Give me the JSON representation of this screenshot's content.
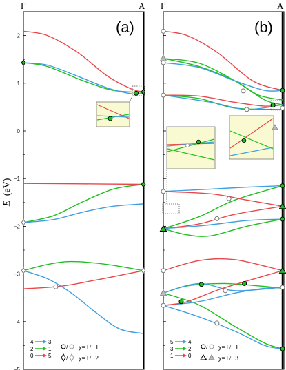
{
  "chart_data": [
    {
      "panel": "(a)",
      "type": "line",
      "xlabels": [
        "Γ",
        "A"
      ],
      "ylabel": "E (eV)",
      "ylim": [
        -5,
        2.5
      ],
      "yticks": [
        "2",
        "1",
        "0",
        "−1",
        "−2",
        "−3",
        "−4",
        "−5"
      ],
      "series": [
        {
          "color": "#e8474a",
          "points": [
            [
              0,
              2.09
            ],
            [
              0.2,
              2.0
            ],
            [
              0.45,
              1.65
            ],
            [
              0.7,
              1.15
            ],
            [
              0.9,
              0.88
            ],
            [
              1,
              0.82
            ]
          ]
        },
        {
          "color": "#1fbf1f",
          "points": [
            [
              0,
              1.43
            ],
            [
              0.2,
              1.35
            ],
            [
              0.5,
              1.05
            ],
            [
              0.75,
              0.85
            ],
            [
              1,
              0.81
            ]
          ]
        },
        {
          "color": "#3e9fe0",
          "points": [
            [
              0,
              1.43
            ],
            [
              0.2,
              1.38
            ],
            [
              0.45,
              1.15
            ],
            [
              0.7,
              0.9
            ],
            [
              0.9,
              0.78
            ],
            [
              1,
              0.79
            ]
          ]
        },
        {
          "color": "#e8474a",
          "points": [
            [
              0,
              -1.1
            ],
            [
              0.5,
              -1.11
            ],
            [
              1,
              -1.12
            ]
          ]
        },
        {
          "color": "#1fbf1f",
          "points": [
            [
              0,
              -1.92
            ],
            [
              0.25,
              -1.78
            ],
            [
              0.5,
              -1.48
            ],
            [
              0.75,
              -1.22
            ],
            [
              1,
              -1.12
            ]
          ]
        },
        {
          "color": "#3e9fe0",
          "points": [
            [
              0,
              -1.92
            ],
            [
              0.25,
              -1.86
            ],
            [
              0.5,
              -1.7
            ],
            [
              0.75,
              -1.58
            ],
            [
              1,
              -1.53
            ]
          ]
        },
        {
          "color": "#1fbf1f",
          "points": [
            [
              0,
              -2.93
            ],
            [
              0.2,
              -2.8
            ],
            [
              0.4,
              -2.74
            ],
            [
              0.7,
              -2.8
            ],
            [
              1,
              -2.93
            ]
          ]
        },
        {
          "color": "#e8474a",
          "points": [
            [
              0,
              -3.31
            ],
            [
              0.3,
              -3.26
            ],
            [
              0.6,
              -3.13
            ],
            [
              1,
              -2.93
            ]
          ]
        },
        {
          "color": "#3e9fe0",
          "points": [
            [
              0,
              -2.93
            ],
            [
              0.2,
              -3.1
            ],
            [
              0.4,
              -3.4
            ],
            [
              0.6,
              -3.8
            ],
            [
              0.8,
              -4.15
            ],
            [
              1,
              -4.25
            ]
          ]
        }
      ],
      "markers": [
        {
          "shape": "diamond",
          "filled": true,
          "x": 0,
          "y": 1.43
        },
        {
          "shape": "diamond",
          "filled": true,
          "x": 1,
          "y": 0.82
        },
        {
          "shape": "diamond",
          "filled": false,
          "x": 0,
          "y": -1.92
        },
        {
          "shape": "diamond",
          "filled": true,
          "x": 1,
          "y": -1.12
        },
        {
          "shape": "diamond",
          "filled": false,
          "x": 0,
          "y": -2.93
        },
        {
          "shape": "diamond",
          "filled": false,
          "x": 1,
          "y": -2.93
        },
        {
          "shape": "circle",
          "filled": false,
          "x": 0.27,
          "y": -3.27
        },
        {
          "shape": "circle",
          "filled": true,
          "x": 0.94,
          "y": 0.79
        }
      ],
      "legend": {
        "arrows": [
          {
            "text": "4",
            "color": "#3e9fe0",
            "to": "3"
          },
          {
            "text": "2",
            "color": "#1fbf1f",
            "to": "1"
          },
          {
            "text": "0",
            "color": "#e8474a",
            "to": "5"
          }
        ],
        "chi": [
          "χ=+/−1",
          "χ=+/−2"
        ]
      }
    },
    {
      "panel": "(b)",
      "type": "line",
      "xlabels": [
        "Γ",
        "A"
      ],
      "ylim": [
        -5,
        2.5
      ],
      "series": [
        {
          "color": "#e8474a",
          "points": [
            [
              0,
              2.09
            ],
            [
              0.2,
              2.0
            ],
            [
              0.45,
              1.65
            ],
            [
              0.75,
              1.05
            ],
            [
              1,
              0.85
            ]
          ]
        },
        {
          "color": "#1fbf1f",
          "points": [
            [
              0,
              1.52
            ],
            [
              0.3,
              1.42
            ],
            [
              0.6,
              1.05
            ],
            [
              0.85,
              0.65
            ],
            [
              1,
              0.55
            ]
          ]
        },
        {
          "color": "#1fbf1f",
          "points": [
            [
              0,
              1.52
            ],
            [
              0.3,
              1.35
            ],
            [
              0.6,
              1.05
            ],
            [
              0.8,
              0.75
            ],
            [
              1,
              0.65
            ]
          ]
        },
        {
          "color": "#3e9fe0",
          "points": [
            [
              0,
              1.43
            ],
            [
              0.3,
              1.33
            ],
            [
              0.6,
              1.05
            ],
            [
              0.85,
              0.85
            ],
            [
              1,
              0.85
            ]
          ]
        },
        {
          "color": "#e8474a",
          "points": [
            [
              0,
              0.75
            ],
            [
              0.3,
              0.73
            ],
            [
              0.6,
              0.6
            ],
            [
              0.85,
              0.52
            ],
            [
              1,
              0.55
            ]
          ]
        },
        {
          "color": "#1fbf1f",
          "points": [
            [
              0,
              0.75
            ],
            [
              0.3,
              0.68
            ],
            [
              0.6,
              0.48
            ],
            [
              1,
              0.45
            ]
          ]
        },
        {
          "color": "#3e9fe0",
          "points": [
            [
              0,
              0.75
            ],
            [
              0.4,
              0.6
            ],
            [
              0.7,
              0.45
            ],
            [
              1,
              0.55
            ]
          ]
        },
        {
          "color": "#3e9fe0",
          "points": [
            [
              0,
              -1.27
            ],
            [
              0.4,
              -1.22
            ],
            [
              0.7,
              -1.18
            ],
            [
              1,
              -1.15
            ]
          ]
        },
        {
          "color": "#1fbf1f",
          "points": [
            [
              0,
              -2.05
            ],
            [
              0.3,
              -1.8
            ],
            [
              0.6,
              -1.45
            ],
            [
              1,
              -1.15
            ]
          ]
        },
        {
          "color": "#e8474a",
          "points": [
            [
              0,
              -1.27
            ],
            [
              0.4,
              -1.32
            ],
            [
              0.7,
              -1.45
            ],
            [
              1,
              -1.58
            ]
          ]
        },
        {
          "color": "#e8474a",
          "points": [
            [
              0,
              -2.05
            ],
            [
              0.3,
              -1.95
            ],
            [
              0.6,
              -1.75
            ],
            [
              1,
              -1.58
            ]
          ]
        },
        {
          "color": "#1fbf1f",
          "points": [
            [
              0,
              -2.05
            ],
            [
              0.2,
              -2.18
            ],
            [
              0.4,
              -2.2
            ],
            [
              0.7,
              -2.0
            ],
            [
              1,
              -1.85
            ]
          ]
        },
        {
          "color": "#3e9fe0",
          "points": [
            [
              0,
              -2.05
            ],
            [
              0.35,
              -1.98
            ],
            [
              0.7,
              -1.88
            ],
            [
              1,
              -1.85
            ]
          ]
        },
        {
          "color": "#e8474a",
          "points": [
            [
              0,
              -2.93
            ],
            [
              0.3,
              -2.72
            ],
            [
              0.6,
              -2.7
            ],
            [
              1,
              -2.93
            ]
          ]
        },
        {
          "color": "#1fbf1f",
          "points": [
            [
              0,
              -3.4
            ],
            [
              0.2,
              -3.25
            ],
            [
              0.5,
              -3.2
            ],
            [
              0.8,
              -3.25
            ],
            [
              1,
              -3.3
            ]
          ]
        },
        {
          "color": "#3e9fe0",
          "points": [
            [
              0,
              -3.4
            ],
            [
              0.3,
              -3.2
            ],
            [
              0.6,
              -3.35
            ],
            [
              1,
              -3.28
            ]
          ]
        },
        {
          "color": "#1fbf1f",
          "points": [
            [
              0,
              -3.4
            ],
            [
              0.3,
              -3.65
            ],
            [
              0.6,
              -4.1
            ],
            [
              0.85,
              -4.45
            ],
            [
              1,
              -4.57
            ]
          ]
        },
        {
          "color": "#3e9fe0",
          "points": [
            [
              0,
              -3.66
            ],
            [
              0.3,
              -3.58
            ],
            [
              0.6,
              -3.4
            ],
            [
              0.85,
              -3.3
            ],
            [
              1,
              -3.28
            ]
          ]
        },
        {
          "color": "#e8474a",
          "points": [
            [
              0,
              -3.66
            ],
            [
              0.2,
              -3.58
            ],
            [
              0.5,
              -3.3
            ],
            [
              1,
              -2.93
            ]
          ]
        },
        {
          "color": "#3e9fe0",
          "points": [
            [
              0,
              -3.66
            ],
            [
              0.3,
              -3.9
            ],
            [
              0.6,
              -4.2
            ],
            [
              0.85,
              -4.5
            ],
            [
              1,
              -4.57
            ]
          ]
        }
      ],
      "markers": [
        {
          "shape": "circle",
          "filled": false,
          "x": 0,
          "y": 2.09
        },
        {
          "shape": "triangle",
          "filled": false,
          "x": 0,
          "y": 1.52
        },
        {
          "shape": "circle",
          "filled": false,
          "x": 0,
          "y": 1.43
        },
        {
          "shape": "circle",
          "filled": false,
          "x": 0,
          "y": 0.75
        },
        {
          "shape": "circle",
          "filled": true,
          "x": 1,
          "y": 0.85
        },
        {
          "shape": "circle",
          "filled": true,
          "x": 0.92,
          "y": 0.54
        },
        {
          "shape": "circle",
          "filled": false,
          "x": 0.67,
          "y": 0.84
        },
        {
          "shape": "circle",
          "filled": false,
          "x": 0.7,
          "y": 0.45
        },
        {
          "shape": "circle",
          "filled": false,
          "x": 1,
          "y": 0.48
        },
        {
          "shape": "circle",
          "filled": false,
          "x": 0,
          "y": -1.27
        },
        {
          "shape": "circle",
          "filled": true,
          "x": 1,
          "y": -1.15
        },
        {
          "shape": "triangle",
          "filled": true,
          "x": 1,
          "y": -1.58
        },
        {
          "shape": "circle",
          "filled": false,
          "x": 0.55,
          "y": -1.42
        },
        {
          "shape": "circle",
          "filled": true,
          "x": 1,
          "y": -1.85
        },
        {
          "shape": "circle",
          "filled": false,
          "x": 0.45,
          "y": -1.84
        },
        {
          "shape": "triangle",
          "filled": true,
          "x": 0,
          "y": -2.05
        },
        {
          "shape": "circle",
          "filled": false,
          "x": 0,
          "y": -2.93
        },
        {
          "shape": "triangle",
          "filled": true,
          "x": 1,
          "y": -2.93
        },
        {
          "shape": "triangle",
          "filled": false,
          "x": 0,
          "y": -3.4
        },
        {
          "shape": "circle",
          "filled": true,
          "x": 0.32,
          "y": -3.22
        },
        {
          "shape": "circle",
          "filled": false,
          "x": 0.52,
          "y": -3.35
        },
        {
          "shape": "circle",
          "filled": true,
          "x": 0.68,
          "y": -3.2
        },
        {
          "shape": "circle",
          "filled": false,
          "x": 1,
          "y": -3.28
        },
        {
          "shape": "circle",
          "filled": false,
          "x": 0,
          "y": -3.66
        },
        {
          "shape": "circle",
          "filled": true,
          "x": 0.15,
          "y": -3.58
        },
        {
          "shape": "circle",
          "filled": false,
          "x": 0.45,
          "y": -4.03
        },
        {
          "shape": "circle",
          "filled": true,
          "x": 1,
          "y": -4.57
        }
      ],
      "legend": {
        "arrows": [
          {
            "text": "5",
            "color": "#3e9fe0",
            "to": "4"
          },
          {
            "text": "3",
            "color": "#1fbf1f",
            "to": "2"
          },
          {
            "text": "1",
            "color": "#e8474a",
            "to": "0"
          }
        ],
        "chi": [
          "χ=+/−1",
          "χ=+/−3"
        ]
      }
    }
  ],
  "labels": {
    "gamma": "Γ",
    "a_point": "A",
    "panel_a": "(a)",
    "panel_b": "(b)",
    "ylabel_e": "E",
    "ylabel_unit": "(eV)"
  }
}
